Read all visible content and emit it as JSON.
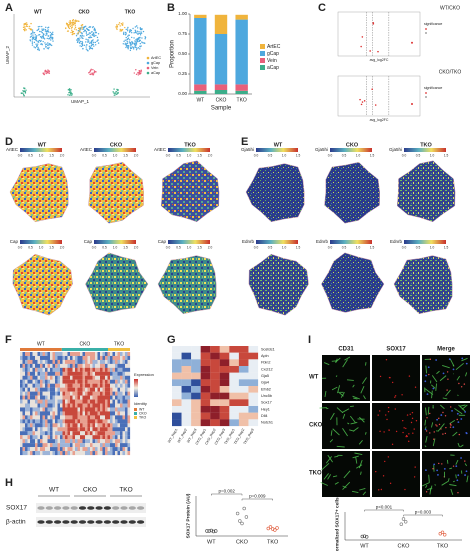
{
  "panel_labels": [
    "A",
    "B",
    "C",
    "D",
    "E",
    "F",
    "G",
    "H",
    "I"
  ],
  "umap": {
    "samples": [
      "WT",
      "CKO",
      "TKO"
    ],
    "x_label": "UMAP_1",
    "y_label": "UMAP_2",
    "legend": [
      "ArtEC",
      "gCap",
      "Vein",
      "aCap"
    ]
  },
  "volcano": {
    "titles": [
      "WT/CKO",
      "CKO/TKO"
    ],
    "x_label": "avg_log2FC",
    "legend_title": "significance"
  },
  "spatial_d": {
    "samples": [
      "WT",
      "CKO",
      "TKO"
    ],
    "rows": [
      "ArtEC",
      "Cap"
    ],
    "scale_ticks": [
      "0.0",
      "0.5",
      "1.0",
      "1.5",
      "2.0"
    ]
  },
  "spatial_e": {
    "samples": [
      "WT",
      "CKO",
      "TKO"
    ],
    "rows": [
      "Gja5hi",
      "Ednrb"
    ],
    "scale_ticks": [
      "0.0",
      "0.5",
      "1.0",
      "1.5"
    ]
  },
  "heatmap_f": {
    "groups": [
      "WT",
      "CKO",
      "TKO"
    ],
    "legend_titles": [
      "Expression",
      "Identity"
    ]
  },
  "heatmap_g": {
    "genes": [
      "Sostdc1",
      "Apln",
      "Fbln2",
      "Cxcl12",
      "Gja5",
      "Gja4",
      "Efnb2",
      "Unc5b",
      "Sox17",
      "Hey1",
      "Dll4",
      "Notch1"
    ],
    "columns": [
      "WT_Rep1",
      "WT_Rep2",
      "WT_Rep3",
      "CKO_Rep1",
      "CKO_Rep2",
      "CKO_Rep3",
      "TKO_Rep1",
      "TKO_Rep2",
      "TKO_Rep3"
    ]
  },
  "western": {
    "samples": [
      "WT",
      "CKO",
      "TKO"
    ],
    "bands": [
      "SOX17",
      "β-actin"
    ]
  },
  "imaging": {
    "channels": [
      "CD31",
      "SOX17",
      "Merge"
    ],
    "rows": [
      "WT",
      "CKO",
      "TKO"
    ]
  },
  "chart_data": [
    {
      "type": "bar",
      "stacked": true,
      "x_label": "Sample",
      "y_label": "Proportion",
      "categories": [
        "WT",
        "CKO",
        "TKO"
      ],
      "series": [
        {
          "name": "ArtEC",
          "color": "#f0b43c",
          "values": [
            0.04,
            0.24,
            0.06
          ]
        },
        {
          "name": "gCap",
          "color": "#4ea8de",
          "values": [
            0.83,
            0.63,
            0.81
          ]
        },
        {
          "name": "Vein",
          "color": "#e8607a",
          "values": [
            0.08,
            0.07,
            0.08
          ]
        },
        {
          "name": "aCap",
          "color": "#3cae8a",
          "values": [
            0.04,
            0.05,
            0.04
          ]
        }
      ],
      "ylim": [
        0,
        1
      ],
      "yticks": [
        {
          "value": 0,
          "label": "0.00"
        },
        {
          "value": 0.25,
          "label": "0.25"
        },
        {
          "value": 0.5,
          "label": "0.50"
        },
        {
          "value": 0.75,
          "label": "0.75"
        },
        {
          "value": 1,
          "label": "1.00"
        }
      ]
    },
    {
      "type": "dot",
      "y_label": "SOX17 Protein (AU)",
      "categories": [
        "WT",
        "CKO",
        "TKO"
      ],
      "values": [
        [
          1,
          1,
          1.1,
          0.9,
          1
        ],
        [
          4.5,
          3,
          2.5,
          5.5,
          3.8
        ],
        [
          1.5,
          1.8,
          1.4,
          1.2,
          1.6
        ]
      ],
      "colors": [
        "#444444",
        "#777777",
        "#e05a3a"
      ],
      "ylim": [
        0,
        8
      ],
      "annotations": [
        "p=0.002",
        "p=0.009"
      ]
    },
    {
      "type": "dot",
      "y_label": "Normalized SOX17+ cells",
      "categories": [
        "WT",
        "CKO",
        "TKO"
      ],
      "values": [
        [
          1,
          1.1,
          0.9
        ],
        [
          4.5,
          6,
          5.2
        ],
        [
          1.8,
          2.2,
          1.5
        ]
      ],
      "colors": [
        "#444444",
        "#777777",
        "#e05a3a"
      ],
      "ylim": [
        0,
        8
      ],
      "annotations": [
        "p<0.001",
        "p=0.003"
      ]
    }
  ]
}
